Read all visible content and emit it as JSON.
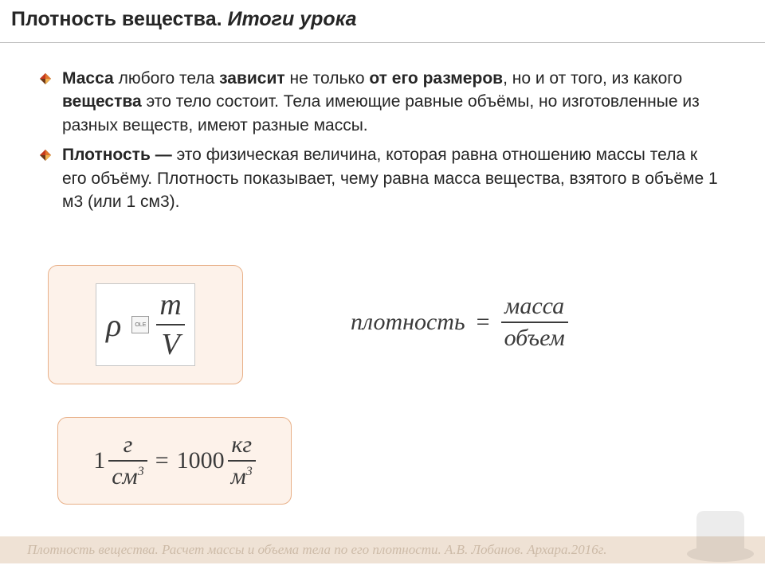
{
  "title": {
    "part1": "Плотность вещества.",
    "part2": "Итоги урока"
  },
  "bullets": [
    {
      "segments": [
        {
          "t": "Масса",
          "b": true
        },
        {
          "t": " любого тела ",
          "b": false
        },
        {
          "t": "зависит",
          "b": true
        },
        {
          "t": " не только  ",
          "b": false
        },
        {
          "t": "от его размеров",
          "b": true
        },
        {
          "t": ", но и от того, из какого ",
          "b": false
        },
        {
          "t": "вещества",
          "b": true
        },
        {
          "t": " это тело состоит. Тела имеющие равные объёмы, но изготовленные из разных веществ, имеют разные массы.",
          "b": false
        }
      ]
    },
    {
      "segments": [
        {
          "t": "Плотность —",
          "b": true
        },
        {
          "t": " это физическая величина, которая равна отношению массы тела к его объёму.    Плотность показывает, чему равна масса вещества, взятого в объёме 1 м3 (или 1 см3).",
          "b": false
        }
      ]
    }
  ],
  "formula_symbolic": {
    "lhs": "ρ",
    "numerator": "m",
    "denominator": "V",
    "numerator_fontsize": 38,
    "denominator_fontsize": 38,
    "color": "#3b3b3b",
    "ole_placeholder": "OLE"
  },
  "formula_word": {
    "lhs": "плотность",
    "numerator": "масса",
    "denominator": "объем",
    "fontsize": 30,
    "color": "#3b3b3b"
  },
  "formula_units": {
    "coefficient_left": "1",
    "left_num": "г",
    "left_den": "см",
    "left_den_sup": "3",
    "coefficient_right": "1000",
    "right_num": "кг",
    "right_den": "м",
    "right_den_sup": "3",
    "fontsize": 30,
    "color": "#3b3b3b"
  },
  "box_style": {
    "border_color": "#e8b088",
    "background_color": "#fdf2ea",
    "border_radius": 12
  },
  "bullet_icon": {
    "colors": [
      "#c73a1d",
      "#e0762e",
      "#f0b050",
      "#6e3a1a"
    ]
  },
  "footer": "Плотность вещества. Расчет массы и объема тела по его плотности. А.В. Лобанов. Архара.2016г.",
  "colors": {
    "page_bg": "#ffffff",
    "text": "#262626",
    "divider": "#bfbfbf",
    "footer_bg": "#efe2d5",
    "footer_text": "#cdbba8"
  }
}
